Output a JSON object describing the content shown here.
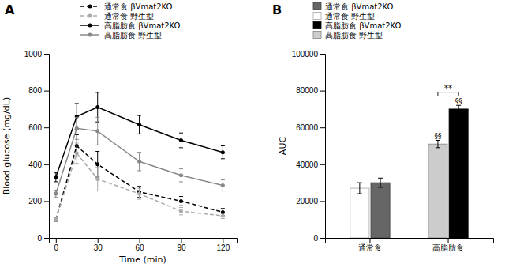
{
  "chart_data": [
    {
      "type": "line",
      "title": "A",
      "x_label": "Time (min)",
      "y_label": "Blood glucose (mg/dL)",
      "x": [
        0,
        15,
        30,
        60,
        90,
        120
      ],
      "xlim": [
        -5,
        130
      ],
      "xticks": [
        0,
        30,
        60,
        90,
        120
      ],
      "ylim": [
        0,
        1000
      ],
      "yticks": [
        0,
        200,
        400,
        600,
        800,
        1000
      ],
      "grid": false,
      "legend": "top",
      "series": [
        {
          "name": "通常食  βVmat2KO",
          "color": "black",
          "line_style": "dashed",
          "marker": "circle",
          "values": [
            100,
            500,
            400,
            250,
            200,
            140
          ],
          "errors": [
            10,
            60,
            70,
            30,
            25,
            20
          ]
        },
        {
          "name": "通常食  野生型",
          "color": "#aaaaaa",
          "line_style": "dashed",
          "marker": "circle",
          "values": [
            100,
            460,
            320,
            240,
            145,
            120
          ],
          "errors": [
            10,
            55,
            65,
            30,
            20,
            15
          ]
        },
        {
          "name": "高脂肪食  βVmat2KO",
          "color": "black",
          "line_style": "solid",
          "marker": "circle",
          "values": [
            330,
            660,
            710,
            615,
            530,
            465
          ],
          "errors": [
            25,
            70,
            80,
            50,
            40,
            35
          ]
        },
        {
          "name": "高脂肪食  野生型",
          "color": "#888888",
          "line_style": "solid",
          "marker": "circle",
          "values": [
            240,
            595,
            580,
            415,
            340,
            285
          ],
          "errors": [
            20,
            60,
            75,
            50,
            35,
            30
          ]
        }
      ]
    },
    {
      "type": "bar",
      "title": "B",
      "y_label": "AUC",
      "categories": [
        "通常食",
        "高脂肪食"
      ],
      "ylim": [
        0,
        100000
      ],
      "yticks": [
        0,
        20000,
        40000,
        60000,
        80000,
        100000
      ],
      "grid": false,
      "legend": "top",
      "series": [
        {
          "name": "通常食  βVmat2KO",
          "color": "#666666",
          "values": [
            30000,
            null
          ],
          "errors": [
            2500,
            null
          ]
        },
        {
          "name": "通常食  野生型",
          "color": "white",
          "values": [
            27000,
            null
          ],
          "errors": [
            3000,
            null
          ]
        },
        {
          "name": "高脂肪食  βVmat2KO",
          "color": "black",
          "values": [
            null,
            70000
          ],
          "errors": [
            null,
            2000
          ]
        },
        {
          "name": "高脂肪食  野生型",
          "color": "#cccccc",
          "values": [
            null,
            51000
          ],
          "errors": [
            null,
            2000
          ]
        }
      ],
      "annotations": [
        {
          "text": "§§",
          "category": "高脂肪食",
          "series": "高脂肪食  野生型",
          "y": 53500
        },
        {
          "text": "§§",
          "category": "高脂肪食",
          "series": "高脂肪食  βVmat2KO",
          "y": 72500
        },
        {
          "text": "**",
          "category": "高脂肪食",
          "series": [
            "高脂肪食  野生型",
            "高脂肪食  βVmat2KO"
          ],
          "y": 77000
        }
      ]
    }
  ]
}
